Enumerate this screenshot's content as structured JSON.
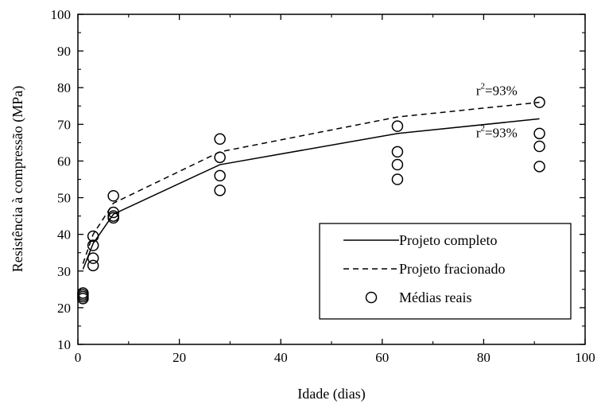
{
  "chart_data": {
    "type": "scatter",
    "xlabel": "Idade (dias)",
    "ylabel": "Resistência à compressão (MPa)",
    "xlim": [
      0,
      100
    ],
    "ylim": [
      10,
      100
    ],
    "xticks": [
      0,
      20,
      40,
      60,
      80,
      100
    ],
    "yticks": [
      10,
      20,
      30,
      40,
      50,
      60,
      70,
      80,
      90,
      100
    ],
    "grid": false,
    "legend_position": "bottom-right",
    "series": [
      {
        "name": "Projeto completo",
        "kind": "line",
        "style": "solid",
        "color": "#000000",
        "points": [
          [
            1,
            30.5
          ],
          [
            3,
            37.5
          ],
          [
            7,
            45.5
          ],
          [
            28,
            59
          ],
          [
            63,
            67.5
          ],
          [
            91,
            71.5
          ]
        ]
      },
      {
        "name": "Projeto fracionado",
        "kind": "line",
        "style": "dashed",
        "color": "#000000",
        "points": [
          [
            1,
            32
          ],
          [
            3,
            40
          ],
          [
            7,
            48.5
          ],
          [
            28,
            62.5
          ],
          [
            63,
            72
          ],
          [
            91,
            76
          ]
        ]
      },
      {
        "name": "Médias reais",
        "kind": "scatter",
        "marker": "open-circle",
        "color": "#000000",
        "points": [
          [
            1,
            22.5
          ],
          [
            1,
            23
          ],
          [
            1,
            23.5
          ],
          [
            1,
            24
          ],
          [
            3,
            31.5
          ],
          [
            3,
            33.5
          ],
          [
            3,
            37
          ],
          [
            3,
            39.5
          ],
          [
            7,
            44.5
          ],
          [
            7,
            45
          ],
          [
            7,
            46
          ],
          [
            7,
            50.5
          ],
          [
            28,
            52
          ],
          [
            28,
            56
          ],
          [
            28,
            61
          ],
          [
            28,
            66
          ],
          [
            63,
            55
          ],
          [
            63,
            59
          ],
          [
            63,
            62.5
          ],
          [
            63,
            69.5
          ],
          [
            91,
            58.5
          ],
          [
            91,
            64
          ],
          [
            91,
            67.5
          ],
          [
            91,
            76
          ]
        ]
      }
    ],
    "annotations": [
      {
        "base": "r",
        "sup": "2",
        "rest": "=93%",
        "x": 78.5,
        "y": 78
      },
      {
        "base": "r",
        "sup": "2",
        "rest": "=93%",
        "x": 78.5,
        "y": 66.5
      }
    ]
  }
}
